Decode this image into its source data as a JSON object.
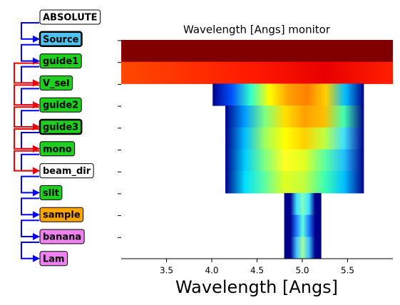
{
  "diagram": {
    "nodes": [
      {
        "label": "ABSOLUTE",
        "fill": "#ffffff",
        "bold_border": false
      },
      {
        "label": "Source",
        "fill": "#4fc3f0",
        "bold_border": true
      },
      {
        "label": "guide1",
        "fill": "#1ecf1e",
        "bold_border": false
      },
      {
        "label": "V_sel",
        "fill": "#1ecf1e",
        "bold_border": false
      },
      {
        "label": "guide2",
        "fill": "#1ecf1e",
        "bold_border": false
      },
      {
        "label": "guide3",
        "fill": "#1ecf1e",
        "bold_border": true
      },
      {
        "label": "mono",
        "fill": "#1ecf1e",
        "bold_border": false
      },
      {
        "label": "beam_dir",
        "fill": "#ffffff",
        "bold_border": false
      },
      {
        "label": "slit",
        "fill": "#1ecf1e",
        "bold_border": false
      },
      {
        "label": "sample",
        "fill": "#ffa500",
        "bold_border": false
      },
      {
        "label": "banana",
        "fill": "#ee82ee",
        "bold_border": false
      },
      {
        "label": "Lam",
        "fill": "#ee82ee",
        "bold_border": false
      }
    ]
  },
  "chart_data": {
    "type": "bands",
    "title": "Wavelength [Angs] monitor",
    "x_label": "Wavelength [Angs]",
    "xlim": [
      3.0,
      6.0
    ],
    "xticks": [
      3.5,
      {
        "value": 4,
        "label": "4.0"
      },
      4.5,
      {
        "value": 5,
        "label": "5.0"
      },
      5.5
    ],
    "rows": [
      {
        "range": [
          3.0,
          6.0
        ],
        "colors": [
          "#800000",
          "#800000"
        ]
      },
      {
        "range": [
          3.0,
          6.0
        ],
        "colors": [
          "#ff4800",
          "#ff3000",
          "#ff1800",
          "#e80000",
          "#ff2000"
        ]
      },
      {
        "range": [
          4.01,
          5.68
        ],
        "colors": [
          "#00008b",
          "#0050ff",
          "#30ffd0",
          "#ffff00",
          "#ffa000",
          "#ff8000",
          "#ffd000",
          "#00c0ff",
          "#00008b"
        ]
      },
      {
        "range": [
          4.15,
          5.68
        ],
        "colors": [
          "#00008b",
          "#00a0ff",
          "#80ff80",
          "#ffe000",
          "#ffa000",
          "#ffc000",
          "#40ffb0",
          "#00008b"
        ]
      },
      {
        "range": [
          4.15,
          5.68
        ],
        "colors": [
          "#00008b",
          "#00c0ff",
          "#a0ff60",
          "#ffff00",
          "#ffd000",
          "#c0ff40",
          "#40e0ff",
          "#00008b"
        ]
      },
      {
        "range": [
          4.15,
          5.68
        ],
        "colors": [
          "#00008b",
          "#00d0ff",
          "#80ff80",
          "#ffff20",
          "#e0ff20",
          "#60ffa0",
          "#20c0ff",
          "#00008b"
        ]
      },
      {
        "range": [
          4.15,
          5.68
        ],
        "colors": [
          "#00008b",
          "#00e0ff",
          "#60ffa0",
          "#e0ff20",
          "#c0ff40",
          "#40ffb0",
          "#00c0ff",
          "#00008b"
        ]
      },
      {
        "range": [
          4.8,
          5.21
        ],
        "colors": [
          "#00008b",
          "#00008b",
          "#40e0ff",
          "#80ffc0",
          "#40e0ff",
          "#00008b",
          "#00008b"
        ]
      },
      {
        "range": [
          4.8,
          5.21
        ],
        "colors": [
          "#00008b",
          "#00008b",
          "#2080ff",
          "#60ffe0",
          "#2080ff",
          "#00008b",
          "#00008b"
        ]
      },
      {
        "range": [
          4.8,
          5.21
        ],
        "colors": [
          "#00008b",
          "#00008b",
          "#40c0ff",
          "#a0ffa0",
          "#40c0ff",
          "#00008b",
          "#00008b"
        ]
      }
    ]
  }
}
